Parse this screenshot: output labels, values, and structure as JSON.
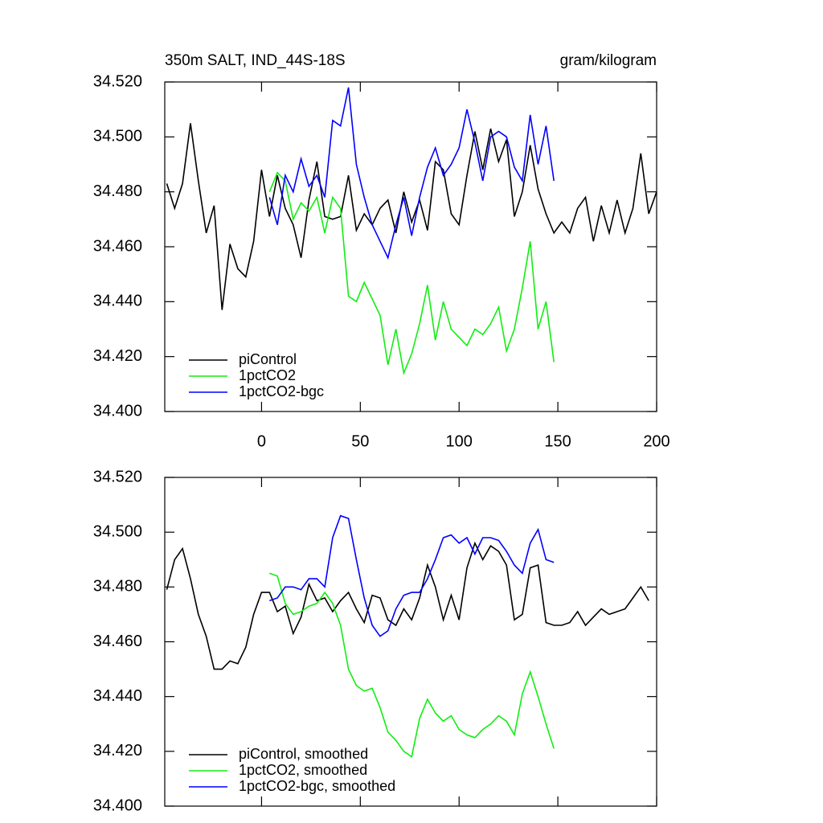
{
  "chart_data": [
    {
      "type": "line",
      "title": "350m SALT, IND_44S-18S",
      "units": "gram/kilogram",
      "x": [
        -48,
        -44,
        -40,
        -36,
        -32,
        -28,
        -24,
        -20,
        -16,
        -12,
        -8,
        -4,
        0,
        4,
        8,
        12,
        16,
        20,
        24,
        28,
        32,
        36,
        40,
        44,
        48,
        52,
        56,
        60,
        64,
        68,
        72,
        76,
        80,
        84,
        88,
        92,
        96,
        100,
        104,
        108,
        112,
        116,
        120,
        124,
        128,
        132,
        136,
        140,
        144,
        148,
        152,
        156,
        160,
        164,
        168,
        172,
        176,
        180,
        184,
        188,
        192,
        196,
        200
      ],
      "series": [
        {
          "name": "piControl",
          "color": "#000000",
          "values": [
            34.483,
            34.474,
            34.483,
            34.505,
            34.484,
            34.465,
            34.475,
            34.437,
            34.461,
            34.452,
            34.449,
            34.462,
            34.488,
            34.471,
            34.486,
            34.474,
            34.468,
            34.456,
            34.477,
            34.491,
            34.471,
            34.47,
            34.471,
            34.486,
            34.466,
            34.472,
            34.468,
            34.474,
            34.477,
            34.465,
            34.48,
            34.469,
            34.477,
            34.466,
            34.491,
            34.488,
            34.472,
            34.468,
            34.486,
            34.502,
            34.488,
            34.503,
            34.491,
            34.499,
            34.471,
            34.48,
            34.497,
            34.481,
            34.472,
            34.465,
            34.469,
            34.465,
            34.474,
            34.478,
            34.462,
            34.475,
            34.465,
            34.477,
            34.465,
            34.474,
            34.494,
            34.472,
            34.48
          ]
        },
        {
          "name": "1pctCO2",
          "color": "#11ee11",
          "values": [
            null,
            null,
            null,
            null,
            null,
            null,
            null,
            null,
            null,
            null,
            null,
            null,
            null,
            34.48,
            34.487,
            34.484,
            34.47,
            34.476,
            34.473,
            34.478,
            34.465,
            34.478,
            34.474,
            34.442,
            34.44,
            34.447,
            34.441,
            34.435,
            34.417,
            34.43,
            34.414,
            34.421,
            34.432,
            34.446,
            34.426,
            34.44,
            34.43,
            34.427,
            34.424,
            34.43,
            34.428,
            34.432,
            34.438,
            34.422,
            34.43,
            34.445,
            34.462,
            34.43,
            34.44,
            34.418,
            null,
            null,
            null,
            null,
            null,
            null,
            null,
            null,
            null,
            null,
            null,
            null,
            null
          ]
        },
        {
          "name": "1pctCO2-bgc",
          "color": "#0000ff",
          "values": [
            null,
            null,
            null,
            null,
            null,
            null,
            null,
            null,
            null,
            null,
            null,
            null,
            null,
            34.478,
            34.468,
            34.486,
            34.48,
            34.492,
            34.482,
            34.486,
            34.478,
            34.506,
            34.504,
            34.518,
            34.49,
            34.478,
            34.468,
            34.462,
            34.456,
            34.468,
            34.478,
            34.464,
            34.478,
            34.489,
            34.496,
            34.486,
            34.49,
            34.496,
            34.51,
            34.498,
            34.484,
            34.5,
            34.502,
            34.5,
            34.489,
            34.484,
            34.508,
            34.49,
            34.504,
            34.484,
            null,
            null,
            null,
            null,
            null,
            null,
            null,
            null,
            null,
            null,
            null,
            null,
            null
          ]
        }
      ],
      "xlim": [
        -49,
        200
      ],
      "xticks": [
        0,
        50,
        100,
        150,
        200
      ],
      "show_xtick_labels": true,
      "ylim": [
        34.4,
        34.52
      ],
      "yticks": [
        {
          "value": 34.4,
          "label": "34.400"
        },
        {
          "value": 34.42,
          "label": "34.420"
        },
        {
          "value": 34.44,
          "label": "34.440"
        },
        {
          "value": 34.46,
          "label": "34.460"
        },
        {
          "value": 34.48,
          "label": "34.480"
        },
        {
          "value": 34.5,
          "label": "34.500"
        },
        {
          "value": 34.52,
          "label": "34.520"
        }
      ],
      "legend": "lower left"
    },
    {
      "type": "line",
      "x": [
        -48,
        -44,
        -40,
        -36,
        -32,
        -28,
        -24,
        -20,
        -16,
        -12,
        -8,
        -4,
        0,
        4,
        8,
        12,
        16,
        20,
        24,
        28,
        32,
        36,
        40,
        44,
        48,
        52,
        56,
        60,
        64,
        68,
        72,
        76,
        80,
        84,
        88,
        92,
        96,
        100,
        104,
        108,
        112,
        116,
        120,
        124,
        128,
        132,
        136,
        140,
        144,
        148,
        152,
        156,
        160,
        164,
        168,
        172,
        176,
        180,
        184,
        188,
        192,
        196,
        200
      ],
      "series": [
        {
          "name": "piControl, smoothed",
          "color": "#000000",
          "values": [
            34.479,
            34.49,
            34.494,
            34.483,
            34.47,
            34.462,
            34.45,
            34.45,
            34.453,
            34.452,
            34.458,
            34.47,
            34.478,
            34.478,
            34.471,
            34.473,
            34.463,
            34.469,
            34.481,
            34.475,
            34.476,
            34.471,
            34.475,
            34.478,
            34.472,
            34.467,
            34.477,
            34.476,
            34.468,
            34.466,
            34.472,
            34.468,
            34.476,
            34.488,
            34.48,
            34.468,
            34.477,
            34.468,
            34.487,
            34.496,
            34.49,
            34.495,
            34.493,
            34.488,
            34.468,
            34.47,
            34.487,
            34.488,
            34.467,
            34.466,
            34.466,
            34.467,
            34.471,
            34.466,
            34.469,
            34.472,
            34.47,
            34.471,
            34.472,
            34.476,
            34.48,
            34.475,
            null
          ]
        },
        {
          "name": "1pctCO2, smoothed",
          "color": "#11ee11",
          "values": [
            null,
            null,
            null,
            null,
            null,
            null,
            null,
            null,
            null,
            null,
            null,
            null,
            null,
            34.485,
            34.484,
            34.474,
            34.47,
            34.471,
            34.473,
            34.474,
            34.478,
            34.474,
            34.466,
            34.45,
            34.444,
            34.442,
            34.443,
            34.436,
            34.427,
            34.424,
            34.42,
            34.418,
            34.432,
            34.439,
            34.434,
            34.431,
            34.433,
            34.428,
            34.426,
            34.425,
            34.428,
            34.43,
            34.433,
            34.431,
            34.426,
            34.441,
            34.449,
            34.44,
            34.43,
            34.421,
            null,
            null,
            null,
            null,
            null,
            null,
            null,
            null,
            null,
            null,
            null,
            null,
            null
          ]
        },
        {
          "name": "1pctCO2-bgc, smoothed",
          "color": "#0000ff",
          "values": [
            null,
            null,
            null,
            null,
            null,
            null,
            null,
            null,
            null,
            null,
            null,
            null,
            null,
            34.475,
            34.476,
            34.48,
            34.48,
            34.479,
            34.483,
            34.483,
            34.48,
            34.498,
            34.506,
            34.505,
            34.49,
            34.476,
            34.466,
            34.462,
            34.464,
            34.472,
            34.477,
            34.478,
            34.478,
            34.483,
            34.49,
            34.498,
            34.499,
            34.496,
            34.498,
            34.492,
            34.498,
            34.498,
            34.497,
            34.493,
            34.488,
            34.485,
            34.496,
            34.501,
            34.49,
            34.489,
            null,
            null,
            null,
            null,
            null,
            null,
            null,
            null,
            null,
            null,
            null,
            null,
            null
          ]
        }
      ],
      "xlim": [
        -49,
        200
      ],
      "xticks": [
        0,
        50,
        100,
        150,
        200
      ],
      "show_xtick_labels": false,
      "ylim": [
        34.4,
        34.52
      ],
      "yticks": [
        {
          "value": 34.4,
          "label": "34.400"
        },
        {
          "value": 34.42,
          "label": "34.420"
        },
        {
          "value": 34.44,
          "label": "34.440"
        },
        {
          "value": 34.46,
          "label": "34.460"
        },
        {
          "value": 34.48,
          "label": "34.480"
        },
        {
          "value": 34.5,
          "label": "34.500"
        },
        {
          "value": 34.52,
          "label": "34.520"
        }
      ],
      "legend": "lower left"
    }
  ]
}
